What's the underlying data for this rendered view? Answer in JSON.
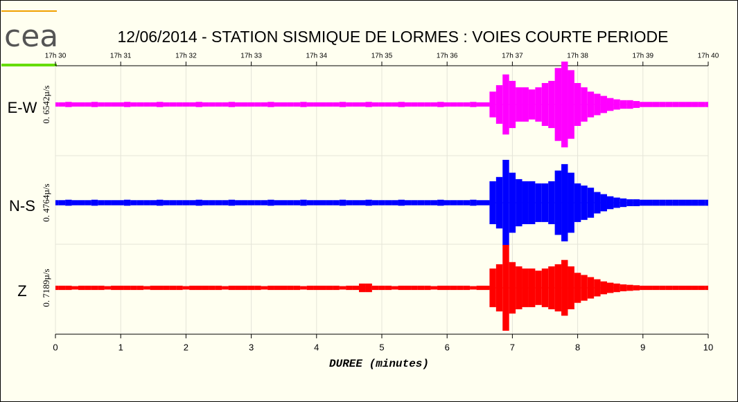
{
  "logo": "cea",
  "chart_data": {
    "type": "seismogram",
    "title": "12/06/2014  -  STATION SISMIQUE DE LORMES : VOIES COURTE PERIODE",
    "xlabel": "DUREE (minutes)",
    "xlim": [
      0,
      10
    ],
    "xticks": [
      0,
      1,
      2,
      3,
      4,
      5,
      6,
      7,
      8,
      9,
      10
    ],
    "x2ticks": [
      {
        "value": 0,
        "label": "17h 30"
      },
      {
        "value": 1,
        "label": "17h 31"
      },
      {
        "value": 2,
        "label": "17h 32"
      },
      {
        "value": 3,
        "label": "17h 33"
      },
      {
        "value": 4,
        "label": "17h 34"
      },
      {
        "value": 5,
        "label": "17h 35"
      },
      {
        "value": 6,
        "label": "17h 36"
      },
      {
        "value": 7,
        "label": "17h 37"
      },
      {
        "value": 8,
        "label": "17h 38"
      },
      {
        "value": 9,
        "label": "17h 39"
      },
      {
        "value": 10,
        "label": "17h 40"
      }
    ],
    "ylim": [
      -1,
      1
    ],
    "grid": true,
    "x": [
      0,
      0.1,
      0.2,
      0.3,
      0.4,
      0.5,
      0.6,
      0.7,
      0.8,
      0.9,
      1,
      1.1,
      1.2,
      1.3,
      1.4,
      1.5,
      1.6,
      1.7,
      1.8,
      1.9,
      2,
      2.1,
      2.2,
      2.3,
      2.4,
      2.5,
      2.6,
      2.7,
      2.8,
      2.9,
      3,
      3.1,
      3.2,
      3.3,
      3.4,
      3.5,
      3.6,
      3.7,
      3.8,
      3.9,
      4,
      4.1,
      4.2,
      4.3,
      4.4,
      4.5,
      4.6,
      4.7,
      4.8,
      4.9,
      5,
      5.1,
      5.2,
      5.3,
      5.4,
      5.5,
      5.6,
      5.7,
      5.8,
      5.9,
      6,
      6.1,
      6.2,
      6.3,
      6.4,
      6.5,
      6.6,
      6.7,
      6.8,
      6.9,
      7,
      7.1,
      7.2,
      7.3,
      7.4,
      7.5,
      7.6,
      7.7,
      7.8,
      7.9,
      8,
      8.1,
      8.2,
      8.3,
      8.4,
      8.5,
      8.6,
      8.7,
      8.8,
      8.9,
      9,
      9.1,
      9.2,
      9.3,
      9.4,
      9.5,
      9.6,
      9.7,
      9.8,
      9.9,
      10
    ],
    "series": [
      {
        "name": "E-W",
        "scale_label": "0. 6542µ/s",
        "color": "#ff00ff",
        "values": [
          0.05,
          0.05,
          0.06,
          0.05,
          0.05,
          0.05,
          0.06,
          0.05,
          0.05,
          0.05,
          0.05,
          0.06,
          0.05,
          0.05,
          0.05,
          0.05,
          0.06,
          0.05,
          0.05,
          0.05,
          0.05,
          0.05,
          0.06,
          0.05,
          0.05,
          0.05,
          0.05,
          0.06,
          0.05,
          0.05,
          0.05,
          0.05,
          0.05,
          0.06,
          0.05,
          0.05,
          0.05,
          0.05,
          0.06,
          0.05,
          0.05,
          0.05,
          0.05,
          0.05,
          0.06,
          0.05,
          0.05,
          0.05,
          0.06,
          0.05,
          0.05,
          0.05,
          0.05,
          0.06,
          0.05,
          0.05,
          0.05,
          0.05,
          0.05,
          0.06,
          0.05,
          0.05,
          0.05,
          0.05,
          0.06,
          0.05,
          0.05,
          0.3,
          0.45,
          0.7,
          0.55,
          0.4,
          0.4,
          0.35,
          0.4,
          0.5,
          0.55,
          0.85,
          1.0,
          0.8,
          0.5,
          0.4,
          0.3,
          0.25,
          0.2,
          0.15,
          0.12,
          0.1,
          0.1,
          0.08,
          0.06,
          0.06,
          0.06,
          0.06,
          0.06,
          0.06,
          0.06,
          0.06,
          0.06,
          0.06,
          0.06
        ]
      },
      {
        "name": "N-S",
        "scale_label": "0. 4764µ/s",
        "color": "#0000ff",
        "values": [
          0.06,
          0.06,
          0.07,
          0.06,
          0.06,
          0.06,
          0.07,
          0.06,
          0.06,
          0.06,
          0.06,
          0.07,
          0.06,
          0.06,
          0.06,
          0.06,
          0.07,
          0.06,
          0.06,
          0.06,
          0.06,
          0.06,
          0.07,
          0.06,
          0.06,
          0.06,
          0.06,
          0.07,
          0.06,
          0.06,
          0.06,
          0.06,
          0.06,
          0.07,
          0.06,
          0.06,
          0.06,
          0.06,
          0.07,
          0.06,
          0.06,
          0.06,
          0.06,
          0.06,
          0.07,
          0.06,
          0.06,
          0.06,
          0.07,
          0.06,
          0.06,
          0.06,
          0.06,
          0.07,
          0.06,
          0.06,
          0.06,
          0.06,
          0.06,
          0.07,
          0.06,
          0.06,
          0.06,
          0.06,
          0.07,
          0.06,
          0.06,
          0.5,
          0.6,
          1.0,
          0.7,
          0.55,
          0.5,
          0.5,
          0.45,
          0.45,
          0.5,
          0.75,
          0.9,
          0.7,
          0.45,
          0.4,
          0.35,
          0.25,
          0.2,
          0.15,
          0.12,
          0.1,
          0.08,
          0.08,
          0.07,
          0.07,
          0.07,
          0.07,
          0.07,
          0.07,
          0.07,
          0.07,
          0.07,
          0.07,
          0.07
        ]
      },
      {
        "name": "Z",
        "scale_label": "0. 7189µ/s",
        "color": "#ff0000",
        "values": [
          0.05,
          0.05,
          0.05,
          0.04,
          0.05,
          0.05,
          0.05,
          0.05,
          0.04,
          0.05,
          0.05,
          0.05,
          0.05,
          0.05,
          0.04,
          0.05,
          0.05,
          0.05,
          0.05,
          0.05,
          0.04,
          0.05,
          0.05,
          0.05,
          0.05,
          0.05,
          0.04,
          0.05,
          0.05,
          0.05,
          0.05,
          0.05,
          0.04,
          0.05,
          0.05,
          0.05,
          0.05,
          0.05,
          0.04,
          0.05,
          0.05,
          0.05,
          0.05,
          0.05,
          0.04,
          0.05,
          0.05,
          0.1,
          0.1,
          0.05,
          0.05,
          0.05,
          0.04,
          0.05,
          0.05,
          0.05,
          0.05,
          0.05,
          0.04,
          0.05,
          0.05,
          0.05,
          0.05,
          0.05,
          0.04,
          0.05,
          0.05,
          0.45,
          0.55,
          1.0,
          0.6,
          0.5,
          0.45,
          0.45,
          0.4,
          0.45,
          0.5,
          0.55,
          0.65,
          0.5,
          0.35,
          0.3,
          0.25,
          0.2,
          0.15,
          0.12,
          0.1,
          0.08,
          0.07,
          0.06,
          0.05,
          0.05,
          0.05,
          0.05,
          0.05,
          0.05,
          0.05,
          0.05,
          0.05,
          0.05,
          0.05
        ]
      }
    ]
  }
}
